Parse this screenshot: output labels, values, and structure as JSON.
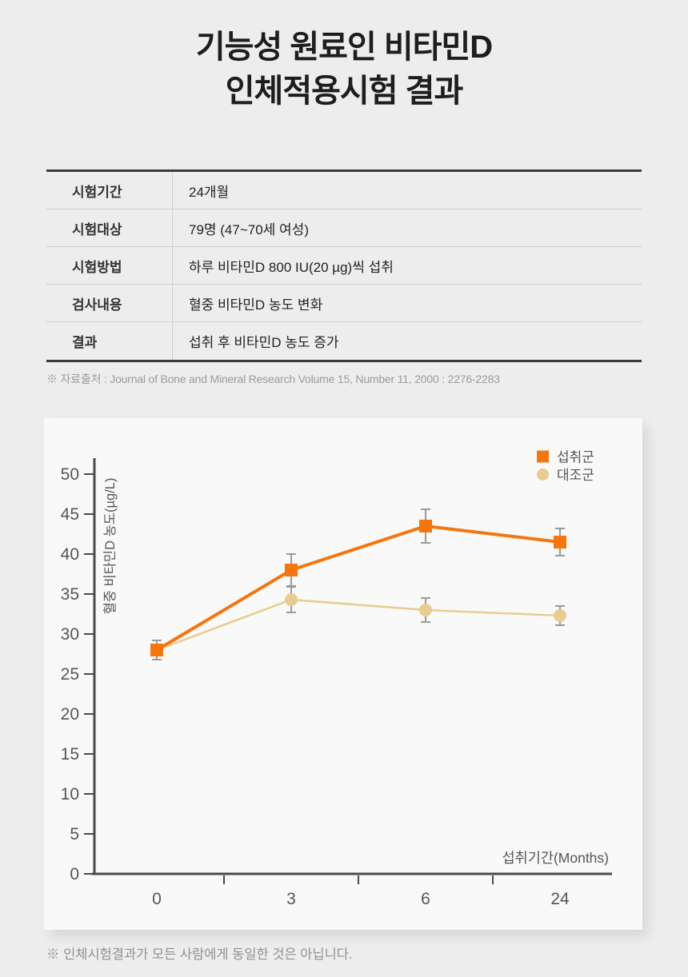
{
  "title": {
    "line1": "기능성 원료인 비타민D",
    "line2": "인체적용시험 결과"
  },
  "table": {
    "rows": [
      {
        "label": "시험기간",
        "value": "24개월"
      },
      {
        "label": "시험대상",
        "value": "79명 (47~70세 여성)"
      },
      {
        "label": "시험방법",
        "value": "하루 비타민D 800 IU(20 µg)씩 섭취"
      },
      {
        "label": "검사내용",
        "value": "혈중 비타민D 농도 변화"
      },
      {
        "label": "결과",
        "value": "섭취 후 비타민D 농도 증가"
      }
    ]
  },
  "source_note": "※ 자료출처 : Journal of Bone and Mineral Research Volume 15, Number 11, 2000 : 2276-2283",
  "footnote": "※ 인체시험결과가 모든 사람에게 동일한 것은 아닙니다.",
  "chart_data": {
    "type": "line",
    "title": "",
    "xlabel": "섭취기간(Months)",
    "ylabel": "혈중 비타민D 농도(µg/L)",
    "categories": [
      "0",
      "3",
      "6",
      "24"
    ],
    "series": [
      {
        "name": "섭취군",
        "marker": "square",
        "color": "#f5760e",
        "values": [
          28,
          38,
          43.5,
          41.5
        ],
        "errors": [
          1.2,
          2.0,
          2.1,
          1.7
        ]
      },
      {
        "name": "대조군",
        "marker": "circle",
        "color": "#e9cc8f",
        "values": [
          28,
          34.3,
          33.0,
          32.3
        ],
        "errors": [
          0,
          1.6,
          1.5,
          1.2
        ]
      }
    ],
    "ylim": [
      0,
      50
    ],
    "ytick_step": 5,
    "legend_position": "top-right",
    "grid": false,
    "axis_color": "#4a4a4a",
    "tick_label_color": "#555555",
    "error_bar_color": "#9a9a9a"
  }
}
